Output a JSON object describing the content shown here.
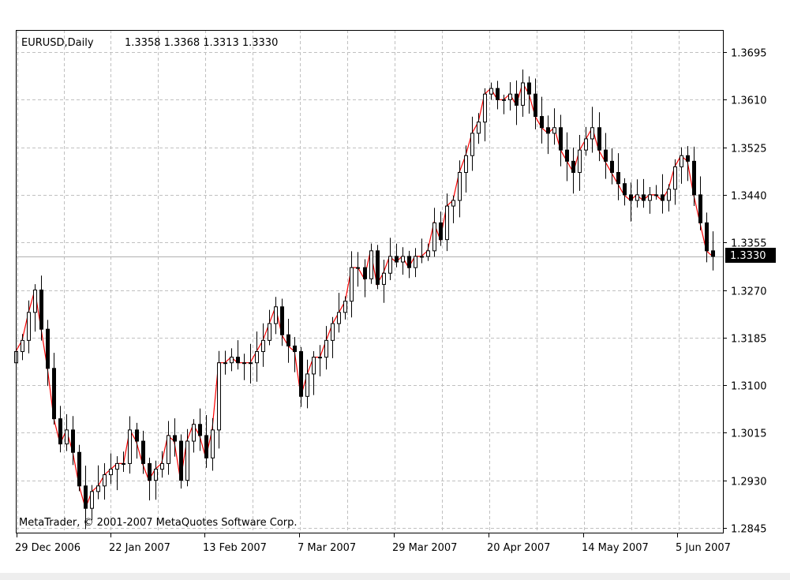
{
  "header": {
    "symbol": "EURUSD,Daily",
    "ohlc": "1.3358 1.3368 1.3313 1.3330"
  },
  "copyright": "MetaTrader, © 2001-2007 MetaQuotes Software Corp.",
  "price_tag": "1.3330",
  "colors": {
    "background": "#ffffff",
    "grid": "#c0c0c0",
    "candle": "#000000",
    "line": "#ff0000",
    "price_tag_bg": "#000000",
    "price_tag_fg": "#ffffff"
  },
  "chart_data": {
    "type": "candlestick",
    "title": "",
    "ylim": [
      1.2835,
      1.3735
    ],
    "y_ticks": [
      "1.3695",
      "1.3610",
      "1.3525",
      "1.3440",
      "1.3355",
      "1.3270",
      "1.3185",
      "1.3100",
      "1.3015",
      "1.2930",
      "1.2845"
    ],
    "x_tick_labels": [
      "29 Dec 2006",
      "22 Jan 2007",
      "13 Feb 2007",
      "7 Mar 2007",
      "29 Mar 2007",
      "20 Apr 2007",
      "14 May 2007",
      "5 Jun 2007"
    ],
    "x_tick_index": [
      0,
      16,
      31,
      46,
      61,
      76,
      92,
      107
    ],
    "current_price": 1.333,
    "grid": true,
    "close": [
      1.316,
      1.318,
      1.323,
      1.327,
      1.32,
      1.313,
      1.304,
      1.2995,
      1.302,
      1.298,
      1.292,
      1.288,
      1.291,
      1.292,
      1.294,
      1.295,
      1.296,
      1.296,
      1.302,
      1.3,
      1.296,
      1.293,
      1.295,
      1.296,
      1.301,
      1.3,
      1.293,
      1.3,
      1.303,
      1.301,
      1.297,
      1.302,
      1.314,
      1.314,
      1.315,
      1.314,
      1.314,
      1.314,
      1.316,
      1.318,
      1.321,
      1.324,
      1.319,
      1.317,
      1.316,
      1.308,
      1.312,
      1.315,
      1.315,
      1.318,
      1.321,
      1.323,
      1.325,
      1.331,
      1.331,
      1.329,
      1.334,
      1.328,
      1.33,
      1.333,
      1.332,
      1.333,
      1.331,
      1.333,
      1.333,
      1.334,
      1.339,
      1.336,
      1.342,
      1.343,
      1.348,
      1.351,
      1.355,
      1.357,
      1.362,
      1.363,
      1.361,
      1.361,
      1.362,
      1.36,
      1.364,
      1.362,
      1.358,
      1.356,
      1.355,
      1.356,
      1.352,
      1.35,
      1.348,
      1.352,
      1.354,
      1.356,
      1.352,
      1.35,
      1.348,
      1.346,
      1.344,
      1.343,
      1.344,
      1.343,
      1.344,
      1.344,
      1.343,
      1.345,
      1.349,
      1.351,
      1.35,
      1.344,
      1.339,
      1.334,
      1.333
    ],
    "open_note": "open = previous close; high/low estimated from wicks"
  }
}
